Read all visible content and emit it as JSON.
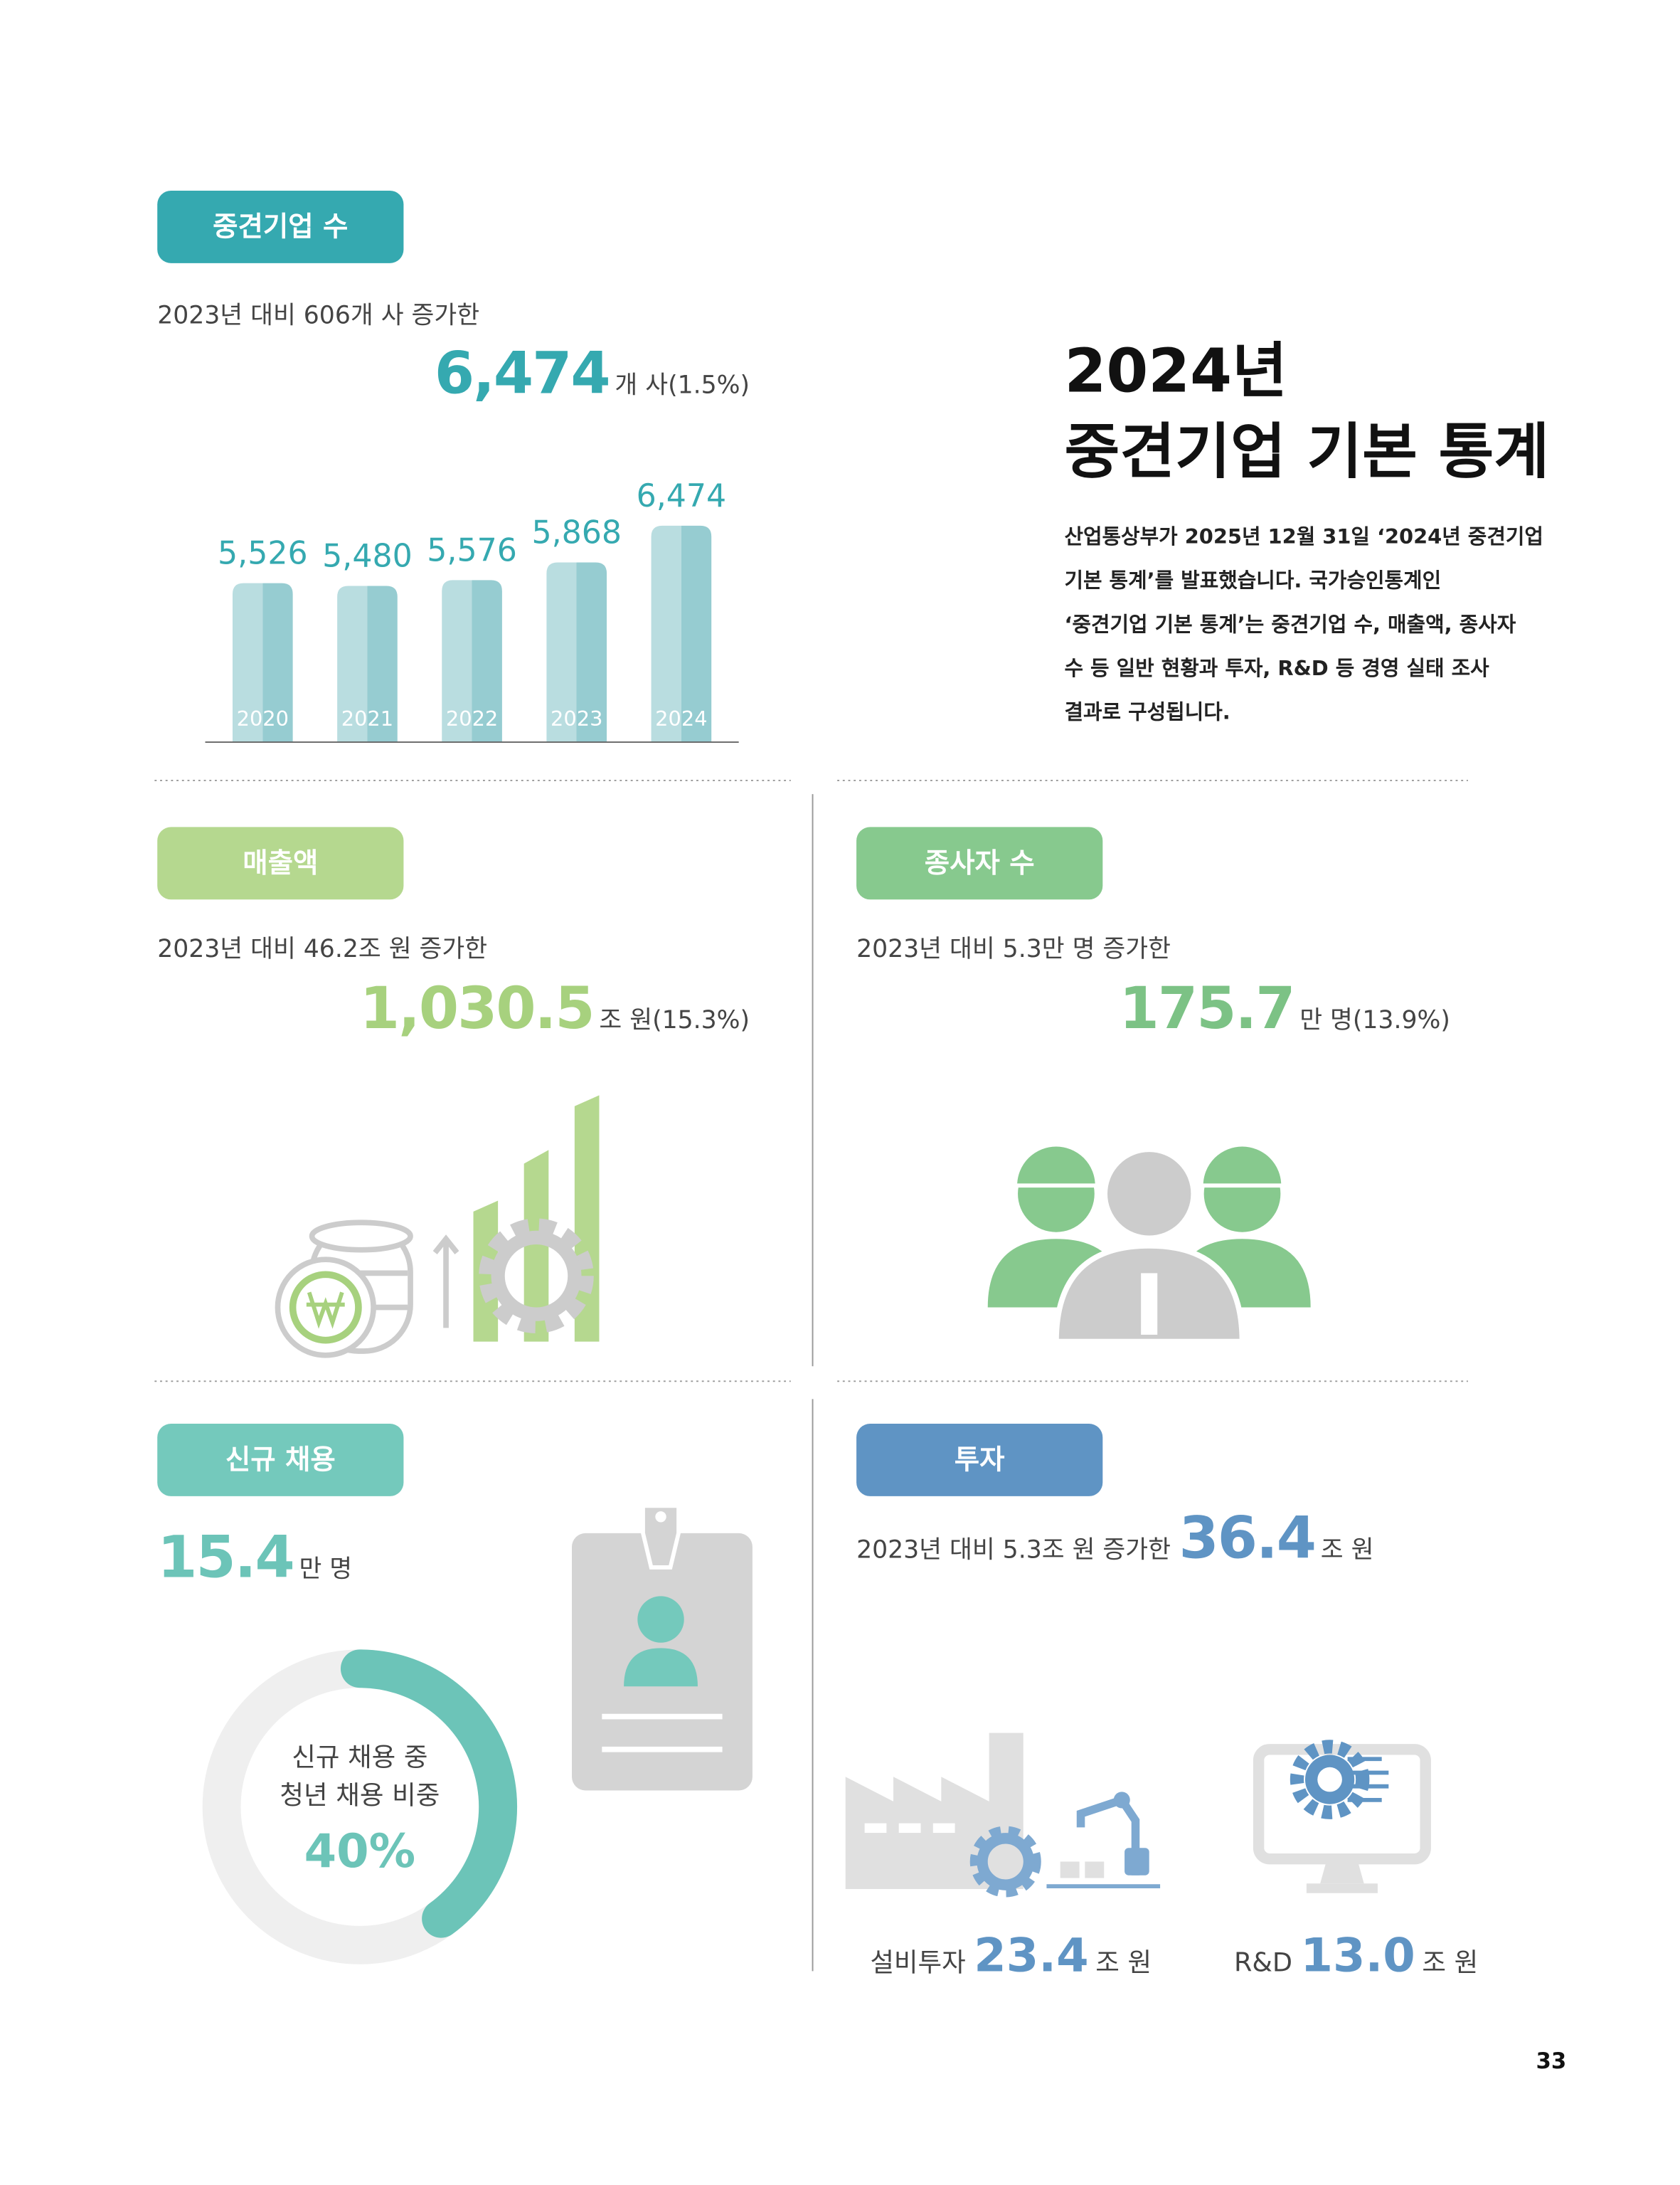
{
  "header": {
    "title_line1": "2024년",
    "title_line2": "중견기업 기본 통계",
    "description": [
      "산업통상부가 2025년 12월 31일 ‘2024년 중견기업",
      "기본 통계’를 발표했습니다. 국가승인통계인",
      "‘중견기업 기본 통계’는 중견기업 수, 매출액, 종사자",
      "수 등 일반 현황과 투자, R&D 등 경영 실태 조사",
      "결과로 구성됩니다."
    ]
  },
  "chart_data": {
    "type": "bar",
    "badge": "중견기업 수",
    "subtitle": "2023년 대비 606개 사 증가한",
    "headline_value": "6,474",
    "headline_unit": "개 사(1.5%)",
    "categories": [
      "2020",
      "2021",
      "2022",
      "2023",
      "2024"
    ],
    "values": [
      5526,
      5480,
      5576,
      5868,
      6474
    ],
    "value_labels": [
      "5,526",
      "5,480",
      "5,576",
      "5,868",
      "6,474"
    ],
    "ylim": [
      2900,
      6900
    ],
    "color": "#9fd2d6"
  },
  "sales": {
    "badge": "매출액",
    "subtitle": "2023년 대비 46.2조 원 증가한",
    "value": "1,030.5",
    "unit": "조 원(15.3%)"
  },
  "employees": {
    "badge": "종사자 수",
    "subtitle": "2023년 대비 5.3만 명 증가한",
    "value": "175.7",
    "unit": "만 명(13.9%)"
  },
  "hiring": {
    "badge": "신규 채용",
    "value": "15.4",
    "unit": "만 명",
    "donut_line1": "신규 채용 중",
    "donut_line2": "청년 채용 비중",
    "youth_share": 40,
    "youth_share_label": "40%"
  },
  "investment": {
    "badge": "투자",
    "subtitle": "2023년 대비 5.3조 원 증가한",
    "value": "36.4",
    "unit": "조 원",
    "items": [
      {
        "label": "설비투자",
        "value": "23.4",
        "unit": "조 원"
      },
      {
        "label": "R&D",
        "value": "13.0",
        "unit": "조 원"
      }
    ]
  },
  "page_number": "33"
}
